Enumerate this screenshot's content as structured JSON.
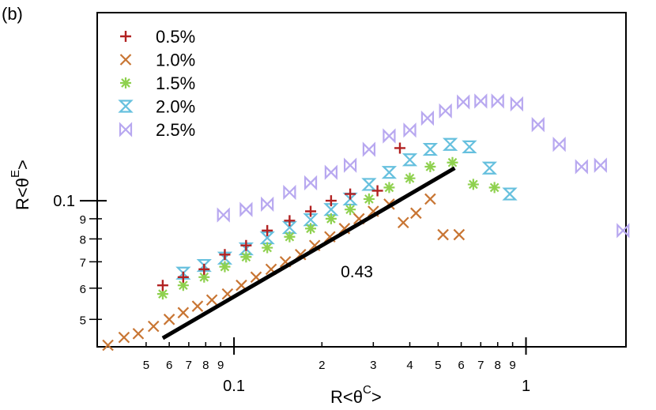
{
  "panel_label": "(b)",
  "chart_data": {
    "type": "scatter",
    "xscale": "log",
    "yscale": "log",
    "xlim": [
      0.034,
      2.2
    ],
    "ylim": [
      0.0426,
      0.3
    ],
    "xlabel": {
      "base": "R<θ",
      "superscript": "C",
      "suffix": ">"
    },
    "ylabel": {
      "base": "R<θ",
      "superscript": "E",
      "suffix": ">"
    },
    "x_ticks_major": [
      {
        "value": 0.1,
        "label": "0.1"
      },
      {
        "value": 1,
        "label": "1"
      }
    ],
    "x_ticks_minor": [
      {
        "value": 0.05,
        "label": "5"
      },
      {
        "value": 0.06,
        "label": "6"
      },
      {
        "value": 0.07,
        "label": "7"
      },
      {
        "value": 0.08,
        "label": "8"
      },
      {
        "value": 0.09,
        "label": "9"
      },
      {
        "value": 0.2,
        "label": "2"
      },
      {
        "value": 0.3,
        "label": "3"
      },
      {
        "value": 0.4,
        "label": "4"
      },
      {
        "value": 0.5,
        "label": "5"
      },
      {
        "value": 0.6,
        "label": "6"
      },
      {
        "value": 0.7,
        "label": "7"
      },
      {
        "value": 0.8,
        "label": "8"
      },
      {
        "value": 0.9,
        "label": "9"
      }
    ],
    "y_ticks_major": [
      {
        "value": 0.1,
        "label": "0.1"
      }
    ],
    "y_ticks_minor": [
      {
        "value": 0.05,
        "label": "5"
      },
      {
        "value": 0.06,
        "label": "6"
      },
      {
        "value": 0.07,
        "label": "7"
      },
      {
        "value": 0.08,
        "label": "8"
      },
      {
        "value": 0.09,
        "label": "9"
      }
    ],
    "fit_line": {
      "label": "0.43",
      "slope": 0.43,
      "x": [
        0.057,
        0.57
      ],
      "y": [
        0.0448,
        0.121
      ],
      "label_at": [
        0.25,
        0.066
      ],
      "color": "#000000"
    },
    "legend_position": "top-left",
    "series": [
      {
        "name": "0.5%",
        "marker": "plus",
        "color": "#b22222",
        "x": [
          0.057,
          0.067,
          0.079,
          0.093,
          0.11,
          0.13,
          0.155,
          0.183,
          0.215,
          0.25,
          0.31,
          0.37
        ],
        "y": [
          0.061,
          0.064,
          0.067,
          0.073,
          0.077,
          0.084,
          0.089,
          0.094,
          0.1,
          0.104,
          0.106,
          0.136
        ]
      },
      {
        "name": "1.0%",
        "marker": "x",
        "color": "#c87533",
        "x": [
          0.037,
          0.042,
          0.047,
          0.053,
          0.06,
          0.067,
          0.075,
          0.084,
          0.095,
          0.106,
          0.119,
          0.134,
          0.15,
          0.169,
          0.189,
          0.213,
          0.239,
          0.268,
          0.3,
          0.34,
          0.38,
          0.42,
          0.47,
          0.52,
          0.59
        ],
        "y": [
          0.043,
          0.045,
          0.046,
          0.048,
          0.05,
          0.052,
          0.054,
          0.056,
          0.058,
          0.061,
          0.064,
          0.067,
          0.07,
          0.073,
          0.077,
          0.081,
          0.085,
          0.09,
          0.094,
          0.098,
          0.088,
          0.093,
          0.101,
          0.082,
          0.082
        ]
      },
      {
        "name": "1.5%",
        "marker": "asterisk",
        "color": "#8fd14f",
        "x": [
          0.057,
          0.067,
          0.079,
          0.093,
          0.11,
          0.13,
          0.155,
          0.183,
          0.215,
          0.25,
          0.29,
          0.34,
          0.4,
          0.47,
          0.56,
          0.66,
          0.78
        ],
        "y": [
          0.058,
          0.061,
          0.064,
          0.068,
          0.072,
          0.076,
          0.081,
          0.085,
          0.09,
          0.095,
          0.101,
          0.108,
          0.114,
          0.122,
          0.125,
          0.11,
          0.108
        ]
      },
      {
        "name": "2.0%",
        "marker": "hourglass",
        "color": "#66c0de",
        "x": [
          0.067,
          0.079,
          0.093,
          0.11,
          0.13,
          0.155,
          0.183,
          0.215,
          0.25,
          0.29,
          0.34,
          0.4,
          0.47,
          0.55,
          0.64,
          0.75,
          0.88
        ],
        "y": [
          0.0655,
          0.0685,
          0.0715,
          0.0755,
          0.0805,
          0.0855,
          0.0895,
          0.095,
          0.101,
          0.11,
          0.118,
          0.127,
          0.135,
          0.139,
          0.137,
          0.121,
          0.104
        ]
      },
      {
        "name": "2.5%",
        "marker": "bowtie",
        "color": "#b8a8f0",
        "x": [
          0.092,
          0.11,
          0.13,
          0.155,
          0.183,
          0.215,
          0.25,
          0.29,
          0.34,
          0.4,
          0.46,
          0.53,
          0.61,
          0.7,
          0.8,
          0.93,
          1.1,
          1.3,
          1.55,
          1.8,
          2.15
        ],
        "y": [
          0.092,
          0.095,
          0.098,
          0.105,
          0.111,
          0.118,
          0.123,
          0.135,
          0.146,
          0.151,
          0.162,
          0.169,
          0.178,
          0.179,
          0.179,
          0.176,
          0.156,
          0.139,
          0.122,
          0.123,
          0.084
        ]
      }
    ]
  }
}
